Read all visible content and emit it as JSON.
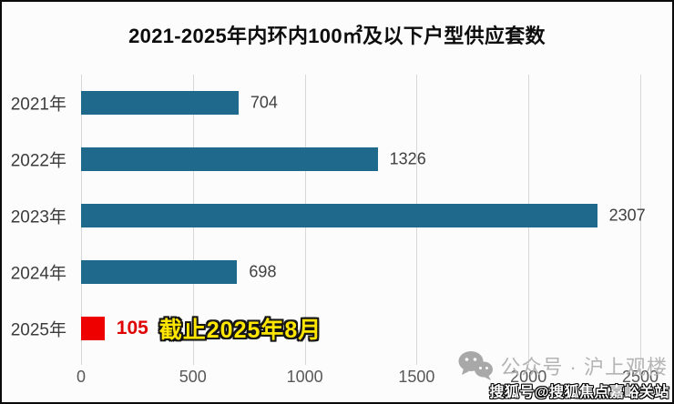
{
  "title": "2021-2025年内环内100㎡及以下户型供应套数",
  "chart_data": {
    "type": "bar",
    "orientation": "horizontal",
    "title": "2021-2025年内环内100㎡及以下户型供应套数",
    "categories": [
      "2021年",
      "2022年",
      "2023年",
      "2024年",
      "2025年"
    ],
    "values": [
      704,
      1326,
      2307,
      698,
      105
    ],
    "xlim": [
      0,
      2500
    ],
    "x_ticks": [
      0,
      500,
      1000,
      1500,
      2000,
      2500
    ],
    "grid": "vertical-gridlines-on",
    "legend": "none",
    "bar_color_default": "#1f6a8c",
    "highlight_index": 4,
    "highlight_bar_color": "#ee0000",
    "value_label_color_default": "#404040",
    "highlight_value_color": "#df0000",
    "annotation": {
      "row_index": 4,
      "text": "截止2025年8月",
      "text_color": "#ffe600",
      "outline_color": "#141414"
    }
  },
  "watermarks": {
    "wechat_label": "公众号 · 沪上观楼",
    "sohu_label": "搜狐号@搜狐焦点嘉峪关站"
  }
}
